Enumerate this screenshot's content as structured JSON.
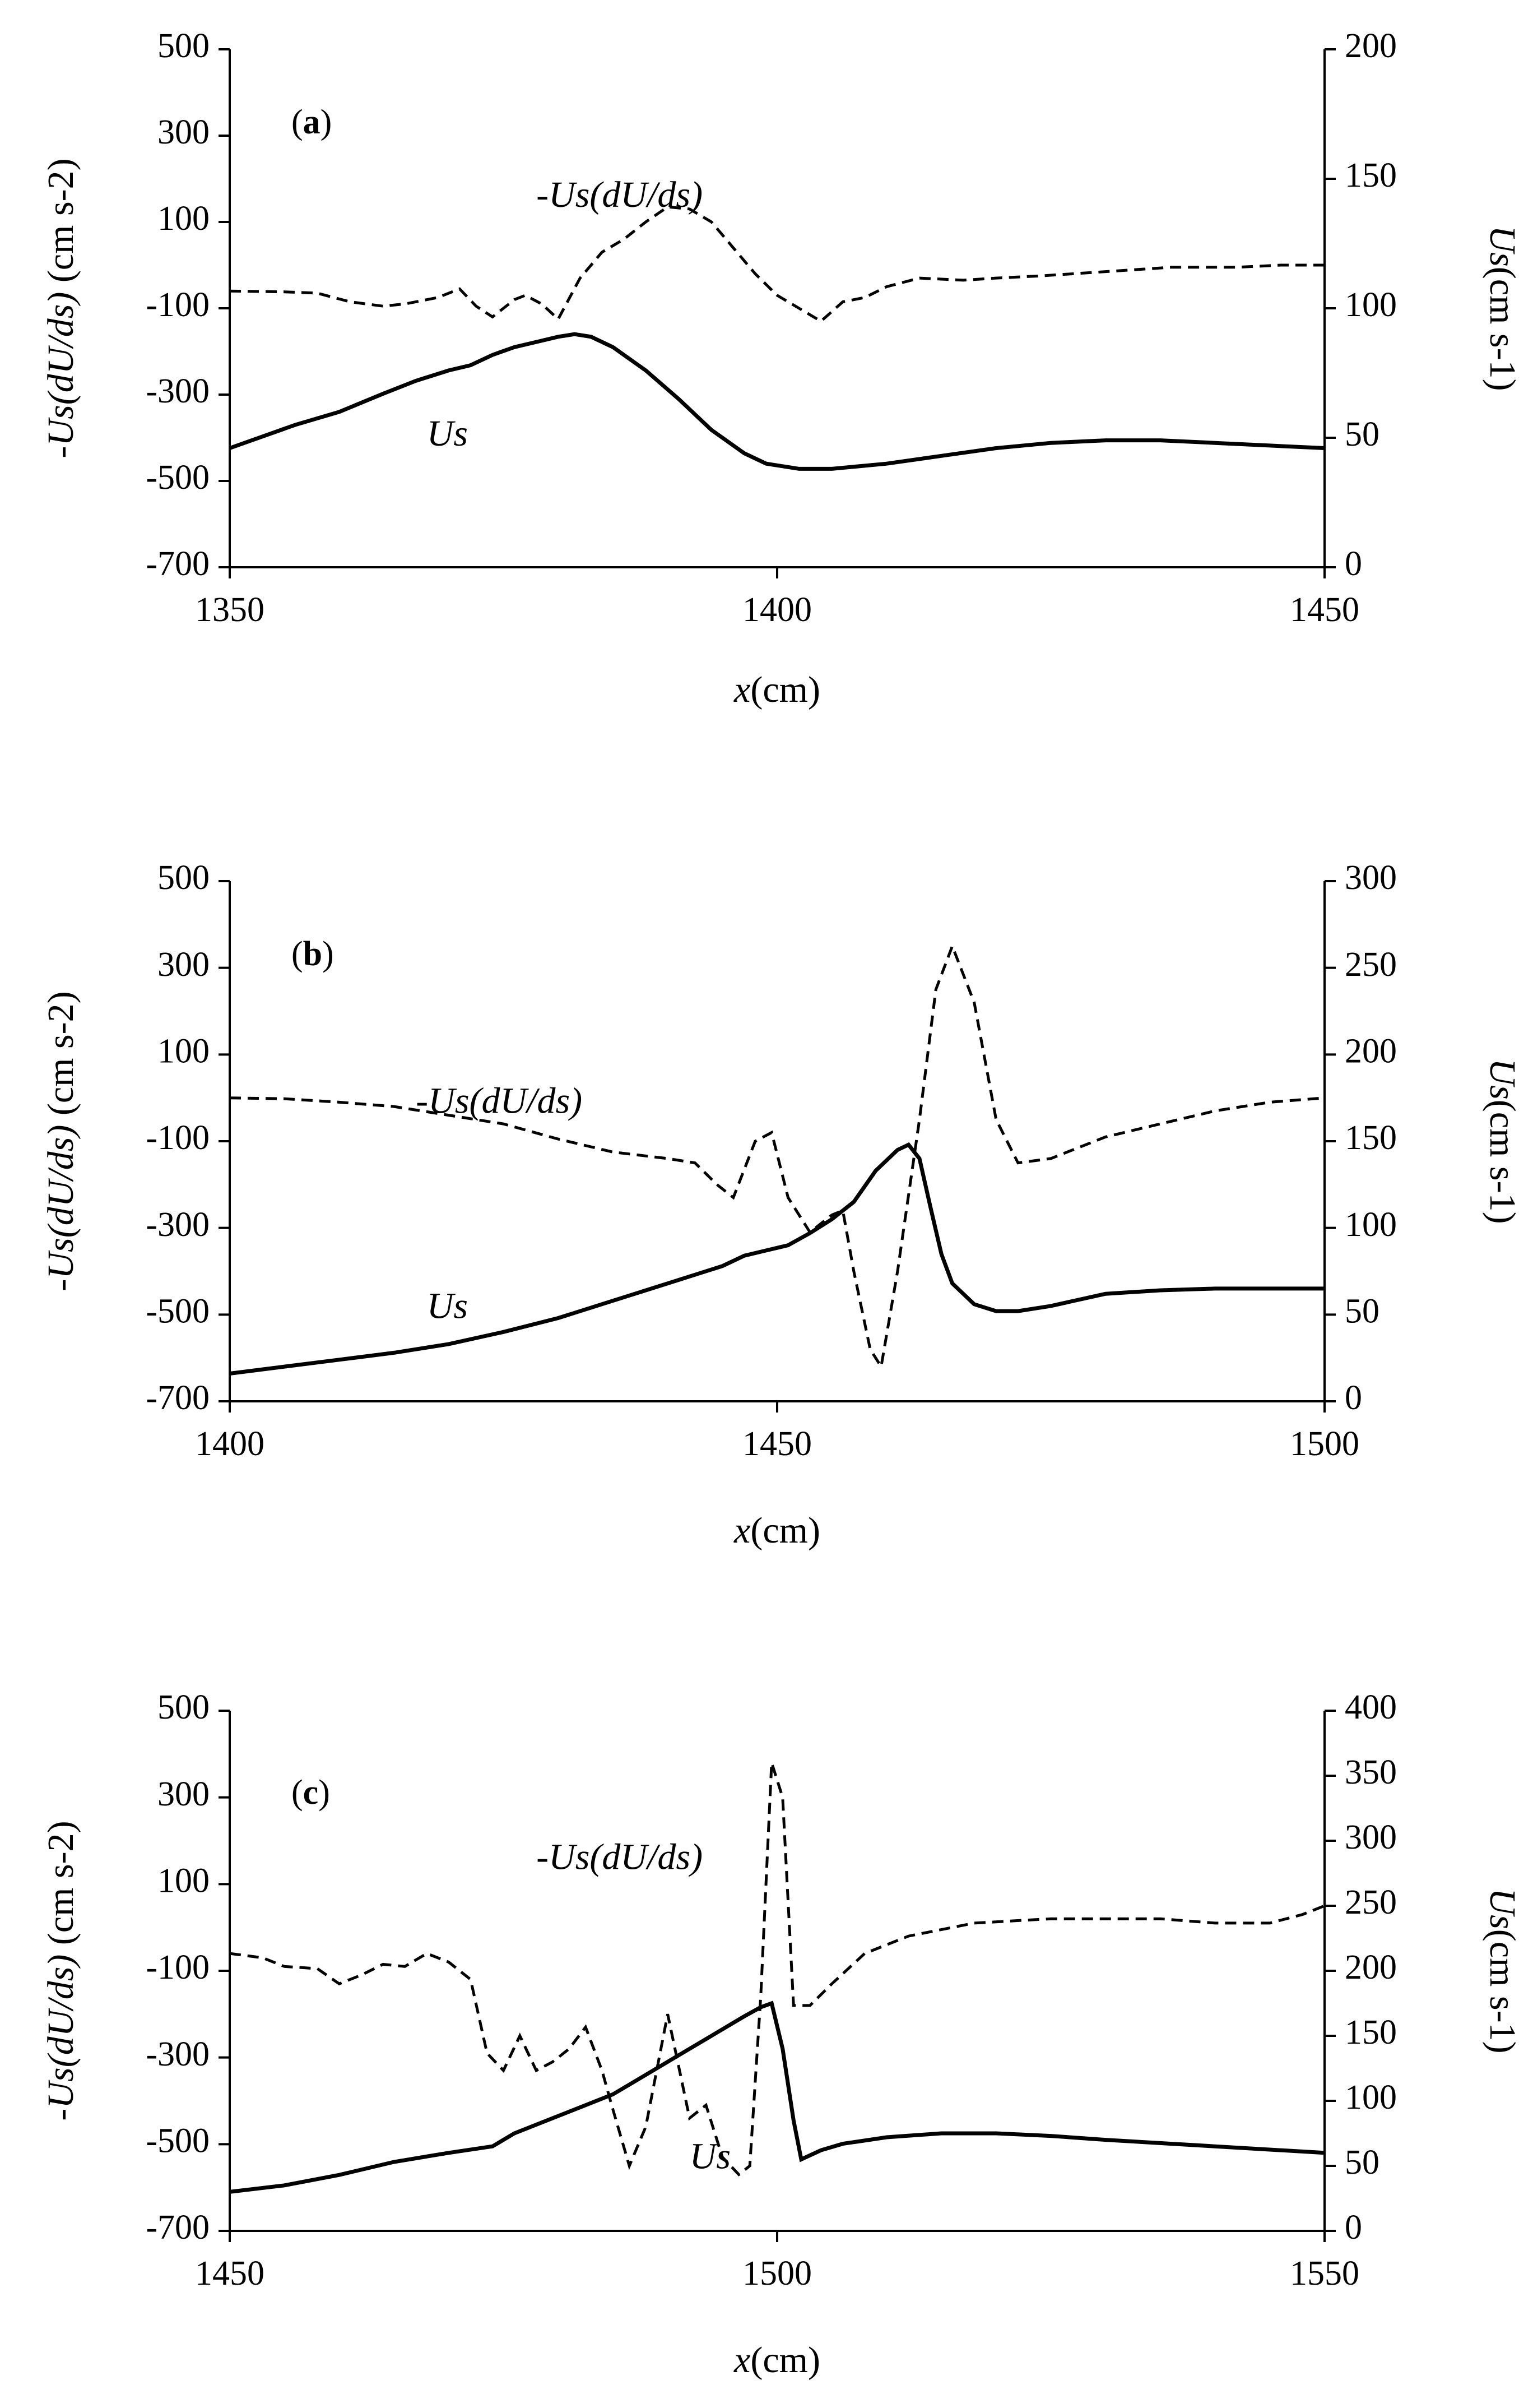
{
  "chart_data": [
    {
      "type": "line",
      "panel_label": {
        "open": "(",
        "letter": "a",
        "close": ")"
      },
      "xlabel": {
        "var": "x",
        "unit": "(cm)"
      },
      "ylabel_left": {
        "var": "-Us(dU/ds)",
        "unit": " (cm s-2)"
      },
      "ylabel_right": {
        "var": "Us",
        "unit": "(cm s-1)"
      },
      "xlim": [
        1350,
        1450
      ],
      "ylim_left": [
        -700,
        500
      ],
      "ylim_right": [
        0,
        200
      ],
      "x_ticks": [
        "1350",
        "1400",
        "1450"
      ],
      "y_left_ticks": [
        "500",
        "300",
        "100",
        "-100",
        "-300",
        "-500",
        "-700"
      ],
      "y_right_ticks": [
        "200",
        "150",
        "100",
        "50",
        "0"
      ],
      "series": [
        {
          "name": "-Us(dU/ds)",
          "axis": "left",
          "style": "dashed",
          "label": "-Us(dU/ds)",
          "label_anchor": [
            1378,
            135
          ],
          "x": [
            1350,
            1355,
            1358,
            1361,
            1364,
            1366,
            1369,
            1371,
            1372.5,
            1374,
            1376,
            1377,
            1378.5,
            1380,
            1382,
            1384,
            1386,
            1388,
            1390,
            1392,
            1394,
            1396,
            1398,
            1400,
            1402,
            1404,
            1406,
            1408,
            1410,
            1413,
            1417,
            1420,
            1424,
            1430,
            1436,
            1442,
            1446,
            1450
          ],
          "values": [
            -60,
            -62,
            -65,
            -85,
            -95,
            -90,
            -75,
            -55,
            -95,
            -120,
            -80,
            -70,
            -90,
            -125,
            -30,
            30,
            60,
            100,
            135,
            130,
            100,
            40,
            -20,
            -70,
            -100,
            -130,
            -85,
            -75,
            -50,
            -30,
            -35,
            -30,
            -25,
            -15,
            -5,
            -5,
            0,
            0
          ]
        },
        {
          "name": "Us",
          "axis": "right",
          "style": "solid",
          "label": "Us",
          "label_anchor": [
            1368,
            47
          ],
          "x": [
            1350,
            1356,
            1360,
            1364,
            1367,
            1370,
            1372,
            1374,
            1376,
            1378,
            1380,
            1381.5,
            1383,
            1385,
            1388,
            1391,
            1394,
            1397,
            1399,
            1402,
            1405,
            1410,
            1415,
            1420,
            1425,
            1430,
            1435,
            1440,
            1445,
            1450
          ],
          "values": [
            46,
            55,
            60,
            67,
            72,
            76,
            78,
            82,
            85,
            87,
            89,
            90,
            89,
            85,
            76,
            65,
            53,
            44,
            40,
            38,
            38,
            40,
            43,
            46,
            48,
            49,
            49,
            48,
            47,
            46
          ]
        }
      ]
    },
    {
      "type": "line",
      "panel_label": {
        "open": "(",
        "letter": "b",
        "close": ")"
      },
      "xlabel": {
        "var": "x",
        "unit": "(cm)"
      },
      "ylabel_left": {
        "var": "-Us(dU/ds)",
        "unit": " (cm s-2)"
      },
      "ylabel_right": {
        "var": "Us",
        "unit": "(cm s-1)"
      },
      "xlim": [
        1400,
        1500
      ],
      "ylim_left": [
        -700,
        500
      ],
      "ylim_right": [
        0,
        300
      ],
      "x_ticks": [
        "1400",
        "1450",
        "1500"
      ],
      "y_left_ticks": [
        "500",
        "300",
        "100",
        "-100",
        "-300",
        "-500",
        "-700"
      ],
      "y_right_ticks": [
        "300",
        "250",
        "200",
        "150",
        "100",
        "50",
        "0"
      ],
      "series": [
        {
          "name": "-Us(dU/ds)",
          "axis": "left",
          "style": "dashed",
          "label": "-Us(dU/ds)",
          "label_anchor": [
            1417,
            -35
          ],
          "x": [
            1400,
            1405,
            1410,
            1415,
            1420,
            1425,
            1430,
            1435,
            1440,
            1442.5,
            1444.5,
            1446,
            1448,
            1449.5,
            1451,
            1453,
            1455,
            1456,
            1457,
            1458.5,
            1459.5,
            1461,
            1463,
            1464.5,
            1466,
            1468,
            1470,
            1472,
            1475,
            1480,
            1485,
            1490,
            1495,
            1500
          ],
          "values": [
            0,
            -2,
            -10,
            -20,
            -40,
            -60,
            -95,
            -125,
            -140,
            -150,
            -200,
            -230,
            -100,
            -80,
            -230,
            -310,
            -270,
            -260,
            -400,
            -580,
            -620,
            -400,
            -50,
            250,
            350,
            220,
            -50,
            -150,
            -140,
            -90,
            -60,
            -30,
            -10,
            0
          ]
        },
        {
          "name": "Us",
          "axis": "right",
          "style": "solid",
          "label": "Us",
          "label_anchor": [
            1418,
            48
          ],
          "x": [
            1400,
            1405,
            1410,
            1415,
            1420,
            1425,
            1430,
            1435,
            1440,
            1445,
            1447,
            1449,
            1451,
            1453,
            1455,
            1457,
            1459,
            1461,
            1462,
            1463,
            1464,
            1465,
            1466,
            1468,
            1470,
            1472,
            1475,
            1480,
            1485,
            1490,
            1495,
            1500
          ],
          "values": [
            16,
            20,
            24,
            28,
            33,
            40,
            48,
            58,
            68,
            78,
            84,
            87,
            90,
            97,
            105,
            115,
            133,
            145,
            148,
            140,
            112,
            85,
            68,
            56,
            52,
            52,
            55,
            62,
            64,
            65,
            65,
            65
          ]
        }
      ]
    },
    {
      "type": "line",
      "panel_label": {
        "open": "(",
        "letter": "c",
        "close": ")"
      },
      "xlabel": {
        "var": "x",
        "unit": "(cm)"
      },
      "ylabel_left": {
        "var": "-Us(dU/ds)",
        "unit": " (cm s-2)"
      },
      "ylabel_right": {
        "var": "Us",
        "unit": "(cm s-1)"
      },
      "xlim": [
        1450,
        1550
      ],
      "ylim_left": [
        -700,
        500
      ],
      "ylim_right": [
        0,
        400
      ],
      "x_ticks": [
        "1450",
        "1500",
        "1550"
      ],
      "y_left_ticks": [
        "500",
        "300",
        "100",
        "-100",
        "-300",
        "-500",
        "-700"
      ],
      "y_right_ticks": [
        "400",
        "350",
        "300",
        "250",
        "200",
        "150",
        "100",
        "50",
        "0"
      ],
      "series": [
        {
          "name": "-Us(dU/ds)",
          "axis": "left",
          "style": "dashed",
          "label": "-Us(dU/ds)",
          "label_anchor": [
            1478,
            135
          ],
          "x": [
            1450,
            1453,
            1455,
            1458,
            1460,
            1462,
            1464,
            1466,
            1468,
            1470,
            1472,
            1473.5,
            1475,
            1476.5,
            1478,
            1479.5,
            1481,
            1482.5,
            1484,
            1485,
            1486.5,
            1488,
            1490,
            1492,
            1493.5,
            1495,
            1496.5,
            1497.5,
            1498.5,
            1499.5,
            1500.5,
            1501.5,
            1503,
            1505,
            1508,
            1512,
            1518,
            1525,
            1530,
            1535,
            1540,
            1545,
            1548,
            1550
          ],
          "values": [
            -60,
            -70,
            -90,
            -95,
            -130,
            -110,
            -85,
            -90,
            -60,
            -80,
            -120,
            -290,
            -330,
            -250,
            -330,
            -310,
            -280,
            -230,
            -330,
            -420,
            -550,
            -460,
            -200,
            -440,
            -410,
            -530,
            -570,
            -550,
            -160,
            380,
            300,
            -180,
            -180,
            -130,
            -60,
            -20,
            10,
            20,
            20,
            20,
            10,
            10,
            30,
            50
          ]
        },
        {
          "name": "Us",
          "axis": "right",
          "style": "solid",
          "label": "Us",
          "label_anchor": [
            1492,
            48
          ],
          "x": [
            1450,
            1455,
            1460,
            1465,
            1470,
            1474,
            1476,
            1479,
            1482,
            1485,
            1487,
            1489,
            1491,
            1493,
            1495,
            1497,
            1498.5,
            1499.5,
            1500.5,
            1501.5,
            1502.2,
            1504,
            1506,
            1510,
            1515,
            1520,
            1525,
            1530,
            1540,
            1550
          ],
          "values": [
            30,
            35,
            43,
            53,
            60,
            65,
            75,
            85,
            95,
            105,
            115,
            125,
            135,
            145,
            155,
            165,
            172,
            175,
            140,
            85,
            55,
            62,
            67,
            72,
            75,
            75,
            73,
            70,
            65,
            60
          ]
        }
      ]
    }
  ]
}
